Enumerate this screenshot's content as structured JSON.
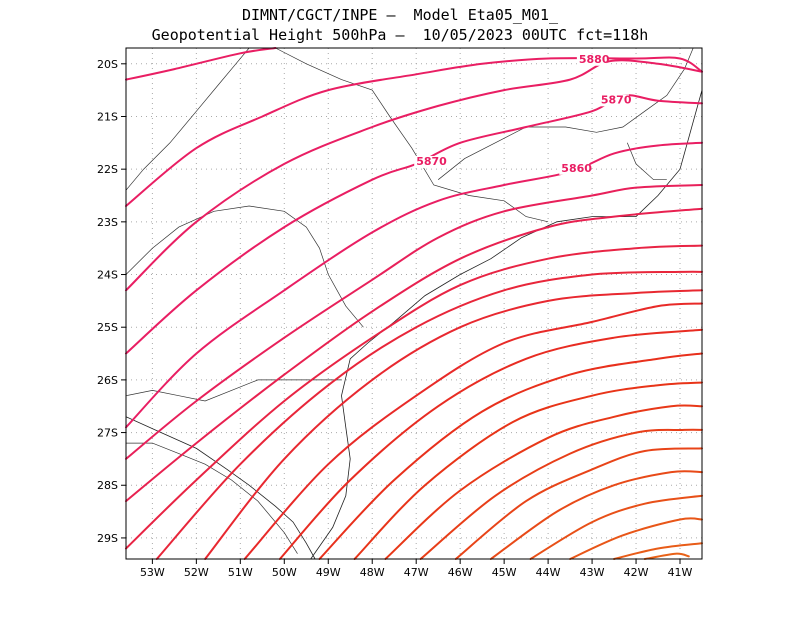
{
  "header": {
    "line1": "DIMNT/CGCT/INPE –  Model Eta05_M01_",
    "line2": "Geopotential Height 500hPa –  10/05/2023 00UTC fct=118h"
  },
  "chart_data": {
    "type": "contour",
    "variable": "Geopotential Height 500hPa",
    "xlim": [
      -53.6,
      -40.5
    ],
    "ylim": [
      -29.4,
      -19.7
    ],
    "x_ticks": [
      "53W",
      "52W",
      "51W",
      "50W",
      "49W",
      "48W",
      "47W",
      "46W",
      "45W",
      "44W",
      "43W",
      "42W",
      "41W"
    ],
    "x_values": [
      -53,
      -52,
      -51,
      -50,
      -49,
      -48,
      -47,
      -46,
      -45,
      -44,
      -43,
      -42,
      -41
    ],
    "y_ticks": [
      "20S",
      "21S",
      "22S",
      "23S",
      "24S",
      "25S",
      "26S",
      "27S",
      "28S",
      "29S"
    ],
    "y_values": [
      -20,
      -21,
      -22,
      -23,
      -24,
      -25,
      -26,
      -27,
      -28,
      -29
    ],
    "grid": true,
    "contour_labels": [
      {
        "text": "5880",
        "lon": -43.3,
        "lat": -19.98
      },
      {
        "text": "5870",
        "lon": -42.8,
        "lat": -20.75
      },
      {
        "text": "5870",
        "lon": -47.0,
        "lat": -21.92
      },
      {
        "text": "5860",
        "lon": -43.7,
        "lat": -22.05
      }
    ],
    "contours": [
      [
        [
          -53.6,
          -20.3
        ],
        [
          -52.5,
          -20.1
        ],
        [
          -51,
          -19.8
        ],
        [
          -50.2,
          -19.7
        ]
      ],
      [
        [
          -53.6,
          -22.7
        ],
        [
          -52,
          -21.6
        ],
        [
          -50.5,
          -21
        ],
        [
          -49,
          -20.5
        ],
        [
          -47,
          -20.2
        ],
        [
          -45.5,
          -20
        ],
        [
          -44,
          -19.9
        ],
        [
          -42,
          -19.9
        ],
        [
          -41,
          -19.9
        ],
        [
          -40.5,
          -20.15
        ]
      ],
      [
        [
          -53.6,
          -24.3
        ],
        [
          -52,
          -23
        ],
        [
          -50,
          -21.9
        ],
        [
          -48,
          -21.2
        ],
        [
          -46.5,
          -20.8
        ],
        [
          -45,
          -20.5
        ],
        [
          -43.5,
          -20.3
        ],
        [
          -42.6,
          -19.95
        ],
        [
          -41.5,
          -20.0
        ],
        [
          -40.5,
          -20.15
        ]
      ],
      [
        [
          -53.6,
          -25.5
        ],
        [
          -52,
          -24.3
        ],
        [
          -50,
          -23.1
        ],
        [
          -48,
          -22.2
        ],
        [
          -47,
          -21.9
        ],
        [
          -46,
          -21.5
        ],
        [
          -44.5,
          -21.2
        ],
        [
          -43,
          -20.9
        ],
        [
          -42.3,
          -20.6
        ],
        [
          -41.5,
          -20.7
        ],
        [
          -40.5,
          -20.75
        ]
      ],
      [
        [
          -53.6,
          -26.9
        ],
        [
          -52,
          -25.5
        ],
        [
          -50,
          -24.3
        ],
        [
          -48,
          -23.2
        ],
        [
          -46.5,
          -22.6
        ],
        [
          -45,
          -22.3
        ],
        [
          -43.5,
          -22.05
        ],
        [
          -42.5,
          -21.7
        ],
        [
          -41.5,
          -21.55
        ],
        [
          -40.5,
          -21.5
        ]
      ],
      [
        [
          -53.6,
          -27.5
        ],
        [
          -52,
          -26.4
        ],
        [
          -50,
          -25.2
        ],
        [
          -48,
          -24.1
        ],
        [
          -46.5,
          -23.3
        ],
        [
          -45,
          -22.8
        ],
        [
          -43,
          -22.5
        ],
        [
          -42,
          -22.35
        ],
        [
          -40.5,
          -22.3
        ]
      ],
      [
        [
          -53.6,
          -28.3
        ],
        [
          -52,
          -27.2
        ],
        [
          -50,
          -25.9
        ],
        [
          -48,
          -24.7
        ],
        [
          -46,
          -23.7
        ],
        [
          -44,
          -23.1
        ],
        [
          -42.5,
          -22.9
        ],
        [
          -40.5,
          -22.75
        ]
      ],
      [
        [
          -53.6,
          -29.2
        ],
        [
          -52,
          -27.9
        ],
        [
          -50,
          -26.4
        ],
        [
          -48,
          -25.2
        ],
        [
          -46,
          -24.2
        ],
        [
          -44,
          -23.7
        ],
        [
          -42,
          -23.5
        ],
        [
          -40.5,
          -23.45
        ]
      ],
      [
        [
          -52.9,
          -29.4
        ],
        [
          -51,
          -27.6
        ],
        [
          -49,
          -26.1
        ],
        [
          -47,
          -25.0
        ],
        [
          -45,
          -24.3
        ],
        [
          -43,
          -24.0
        ],
        [
          -41,
          -23.95
        ],
        [
          -40.5,
          -23.95
        ]
      ],
      [
        [
          -51.8,
          -29.4
        ],
        [
          -50,
          -27.5
        ],
        [
          -48,
          -26.0
        ],
        [
          -46,
          -25.0
        ],
        [
          -44,
          -24.5
        ],
        [
          -42,
          -24.35
        ],
        [
          -40.5,
          -24.3
        ]
      ],
      [
        [
          -50.9,
          -29.4
        ],
        [
          -49,
          -27.6
        ],
        [
          -47,
          -26.3
        ],
        [
          -45,
          -25.3
        ],
        [
          -43,
          -24.9
        ],
        [
          -41.5,
          -24.6
        ],
        [
          -40.5,
          -24.55
        ]
      ],
      [
        [
          -50.1,
          -29.4
        ],
        [
          -48.5,
          -27.9
        ],
        [
          -46.5,
          -26.5
        ],
        [
          -44.5,
          -25.6
        ],
        [
          -42.5,
          -25.2
        ],
        [
          -40.5,
          -25.05
        ]
      ],
      [
        [
          -49.2,
          -29.4
        ],
        [
          -47.5,
          -27.9
        ],
        [
          -45.5,
          -26.6
        ],
        [
          -43.5,
          -25.9
        ],
        [
          -41.5,
          -25.6
        ],
        [
          -40.5,
          -25.5
        ]
      ],
      [
        [
          -48.4,
          -29.4
        ],
        [
          -46.8,
          -28.0
        ],
        [
          -44.8,
          -26.8
        ],
        [
          -43,
          -26.3
        ],
        [
          -41.5,
          -26.1
        ],
        [
          -40.5,
          -26.05
        ]
      ],
      [
        [
          -47.7,
          -29.4
        ],
        [
          -46,
          -28.1
        ],
        [
          -44,
          -27.1
        ],
        [
          -42.5,
          -26.7
        ],
        [
          -41.2,
          -26.5
        ],
        [
          -40.5,
          -26.5
        ]
      ],
      [
        [
          -46.9,
          -29.4
        ],
        [
          -45.2,
          -28.2
        ],
        [
          -43.5,
          -27.4
        ],
        [
          -42,
          -27.0
        ],
        [
          -40.9,
          -26.95
        ],
        [
          -40.5,
          -26.95
        ]
      ],
      [
        [
          -46.1,
          -29.4
        ],
        [
          -44.5,
          -28.3
        ],
        [
          -43,
          -27.7
        ],
        [
          -41.8,
          -27.35
        ],
        [
          -40.5,
          -27.3
        ]
      ],
      [
        [
          -45.3,
          -29.4
        ],
        [
          -43.8,
          -28.5
        ],
        [
          -42.5,
          -28.0
        ],
        [
          -41.2,
          -27.75
        ],
        [
          -40.5,
          -27.75
        ]
      ],
      [
        [
          -44.4,
          -29.4
        ],
        [
          -43,
          -28.7
        ],
        [
          -41.8,
          -28.35
        ],
        [
          -40.5,
          -28.2
        ]
      ],
      [
        [
          -43.5,
          -29.4
        ],
        [
          -42.3,
          -28.95
        ],
        [
          -41,
          -28.65
        ],
        [
          -40.5,
          -28.65
        ]
      ],
      [
        [
          -42.5,
          -29.4
        ],
        [
          -41.5,
          -29.2
        ],
        [
          -40.5,
          -29.1
        ]
      ],
      [
        [
          -41.8,
          -29.4
        ],
        [
          -41.1,
          -29.3
        ],
        [
          -40.8,
          -29.35
        ]
      ]
    ],
    "colors": [
      "#e91e63",
      "#e91e63",
      "#e91e63",
      "#e91e63",
      "#e91e63",
      "#e8205a",
      "#e82150",
      "#e82444",
      "#e8263a",
      "#e82830",
      "#e82a28",
      "#e82c22",
      "#e8301c",
      "#e83418",
      "#e83818",
      "#e83e18",
      "#e84418",
      "#e84a18",
      "#e85018",
      "#e85618",
      "#e85c18",
      "#e86218"
    ],
    "coastline": [
      [
        -53.6,
        -26.7
      ],
      [
        -52.8,
        -27.0
      ],
      [
        -52,
        -27.3
      ],
      [
        -51.3,
        -27.7
      ],
      [
        -50.8,
        -28.0
      ],
      [
        -50.2,
        -28.4
      ],
      [
        -49.8,
        -28.7
      ],
      [
        -49.5,
        -29.1
      ],
      [
        -49.3,
        -29.4
      ]
    ],
    "coastline_east": [
      [
        -49.4,
        -29.4
      ],
      [
        -48.9,
        -28.8
      ],
      [
        -48.6,
        -28.2
      ],
      [
        -48.5,
        -27.5
      ],
      [
        -48.6,
        -26.9
      ],
      [
        -48.7,
        -26.3
      ],
      [
        -48.5,
        -25.6
      ],
      [
        -48.1,
        -25.3
      ],
      [
        -47.5,
        -24.9
      ],
      [
        -46.8,
        -24.4
      ],
      [
        -46,
        -24.0
      ],
      [
        -45.3,
        -23.7
      ],
      [
        -44.6,
        -23.3
      ],
      [
        -43.8,
        -23.0
      ],
      [
        -43.0,
        -22.9
      ],
      [
        -42.0,
        -22.9
      ],
      [
        -41.5,
        -22.5
      ],
      [
        -41.0,
        -22.0
      ],
      [
        -40.8,
        -21.4
      ],
      [
        -40.6,
        -20.8
      ],
      [
        -40.5,
        -20.5
      ]
    ],
    "borders": [
      [
        [
          -53.6,
          -22.4
        ],
        [
          -53.2,
          -22.0
        ],
        [
          -52.6,
          -21.5
        ],
        [
          -52,
          -20.9
        ],
        [
          -51.5,
          -20.4
        ],
        [
          -51.1,
          -20.0
        ],
        [
          -50.8,
          -19.7
        ]
      ],
      [
        [
          -53.6,
          -24.0
        ],
        [
          -53,
          -23.5
        ],
        [
          -52.4,
          -23.1
        ],
        [
          -51.6,
          -22.8
        ],
        [
          -50.8,
          -22.7
        ],
        [
          -50,
          -22.8
        ],
        [
          -49.5,
          -23.1
        ],
        [
          -49.2,
          -23.5
        ],
        [
          -49.0,
          -24.0
        ],
        [
          -48.6,
          -24.6
        ],
        [
          -48.2,
          -25.0
        ]
      ],
      [
        [
          -53.6,
          -26.3
        ],
        [
          -53,
          -26.2
        ],
        [
          -52.4,
          -26.3
        ],
        [
          -51.8,
          -26.4
        ],
        [
          -51.2,
          -26.2
        ],
        [
          -50.6,
          -26.0
        ],
        [
          -50,
          -26.0
        ],
        [
          -49.3,
          -26.0
        ],
        [
          -48.7,
          -26.0
        ]
      ],
      [
        [
          -53.6,
          -27.2
        ],
        [
          -53,
          -27.2
        ],
        [
          -52.4,
          -27.4
        ],
        [
          -51.8,
          -27.6
        ],
        [
          -51.2,
          -27.9
        ],
        [
          -50.6,
          -28.3
        ],
        [
          -50.0,
          -28.9
        ],
        [
          -49.7,
          -29.3
        ]
      ],
      [
        [
          -50.2,
          -19.7
        ],
        [
          -49.5,
          -20.0
        ],
        [
          -48.7,
          -20.3
        ],
        [
          -48,
          -20.5
        ],
        [
          -47.6,
          -21.0
        ],
        [
          -47.1,
          -21.6
        ],
        [
          -46.6,
          -22.3
        ],
        [
          -45.8,
          -22.5
        ],
        [
          -45,
          -22.6
        ],
        [
          -44.5,
          -22.9
        ],
        [
          -44,
          -23.0
        ]
      ],
      [
        [
          -46.5,
          -22.2
        ],
        [
          -45.9,
          -21.8
        ],
        [
          -45.2,
          -21.5
        ],
        [
          -44.5,
          -21.2
        ],
        [
          -43.6,
          -21.2
        ],
        [
          -42.9,
          -21.3
        ],
        [
          -42.3,
          -21.2
        ],
        [
          -41.8,
          -20.9
        ],
        [
          -41.3,
          -20.6
        ],
        [
          -40.9,
          -20.1
        ],
        [
          -40.7,
          -19.7
        ]
      ],
      [
        [
          -42.2,
          -21.5
        ],
        [
          -42.0,
          -21.9
        ],
        [
          -41.6,
          -22.2
        ],
        [
          -41.3,
          -22.2
        ]
      ]
    ]
  }
}
